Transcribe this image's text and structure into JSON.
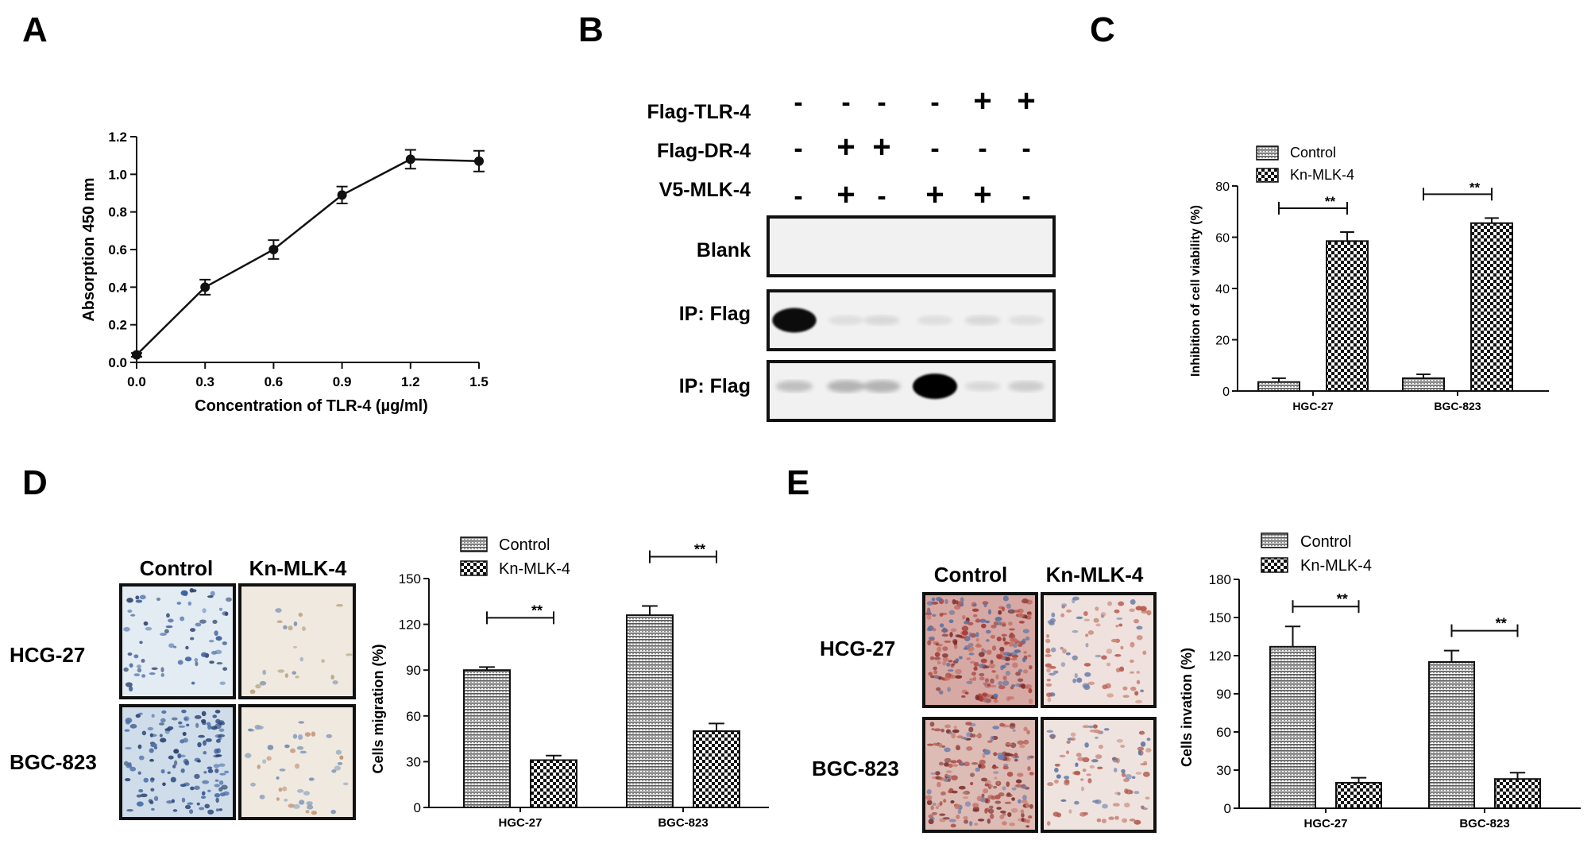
{
  "panels": {
    "A": "A",
    "B": "B",
    "C": "C",
    "D": "D",
    "E": "E"
  },
  "colors": {
    "line": "#111111",
    "control_fill": "hatch-gray",
    "kn_fill": "checker-black-white",
    "blot_background": "#f0f0f0",
    "micro_blue_bg": "#dfe8f2",
    "micro_cream_bg": "#efe8dc",
    "micro_red_dense_bg": "#d9a9a4",
    "micro_light_red_bg": "#efe1df"
  },
  "chart_data": [
    {
      "id": "A",
      "type": "line",
      "title": "",
      "xlabel": "Concentration of TLR-4 (µg/ml)",
      "ylabel": "Absorption 450 nm",
      "xlim": [
        0,
        1.5
      ],
      "ylim": [
        0,
        1.2
      ],
      "x_ticks": [
        "0.0",
        "0.3",
        "0.6",
        "0.9",
        "1.2",
        "1.5"
      ],
      "y_ticks": [
        "0.0",
        "0.2",
        "0.4",
        "0.6",
        "0.8",
        "1.0",
        "1.2"
      ],
      "series": [
        {
          "x": [
            0,
            0.3,
            0.6,
            0.9,
            1.2,
            1.5
          ],
          "values": [
            0.04,
            0.4,
            0.6,
            0.89,
            1.08,
            1.07
          ],
          "errors": [
            0.01,
            0.04,
            0.05,
            0.045,
            0.05,
            0.055
          ]
        }
      ]
    },
    {
      "id": "C",
      "type": "bar",
      "title": "",
      "xlabel": "",
      "ylabel": "Inhibition of cell viability (%)",
      "ylim": [
        0,
        80
      ],
      "y_ticks": [
        "0",
        "20",
        "40",
        "60",
        "80"
      ],
      "categories": [
        "HGC-27",
        "BGC-823"
      ],
      "series": [
        {
          "name": "Control",
          "values": [
            3.5,
            5
          ],
          "errors": [
            1.5,
            1.5
          ]
        },
        {
          "name": "Kn-MLK-4",
          "values": [
            58.5,
            65.5
          ],
          "errors": [
            3.5,
            2
          ]
        }
      ],
      "significance": [
        "**",
        "**"
      ],
      "legend": "top-left"
    },
    {
      "id": "D",
      "type": "bar",
      "title": "",
      "xlabel": "",
      "ylabel": "Cells migration (%)",
      "ylim": [
        0,
        150
      ],
      "y_ticks": [
        "0",
        "30",
        "60",
        "90",
        "120",
        "150"
      ],
      "categories": [
        "HGC-27",
        "BGC-823"
      ],
      "series": [
        {
          "name": "Control",
          "values": [
            90,
            126
          ],
          "errors": [
            2,
            6
          ]
        },
        {
          "name": "Kn-MLK-4",
          "values": [
            31,
            50
          ],
          "errors": [
            3,
            5
          ]
        }
      ],
      "significance": [
        "**",
        "**"
      ],
      "legend": "top-left"
    },
    {
      "id": "E",
      "type": "bar",
      "title": "",
      "xlabel": "",
      "ylabel": "Cells invation (%)",
      "ylim": [
        0,
        180
      ],
      "y_ticks": [
        "0",
        "30",
        "60",
        "90",
        "120",
        "150",
        "180"
      ],
      "categories": [
        "HGC-27",
        "BGC-823"
      ],
      "series": [
        {
          "name": "Control",
          "values": [
            127,
            115
          ],
          "errors": [
            16,
            9
          ]
        },
        {
          "name": "Kn-MLK-4",
          "values": [
            20,
            23
          ],
          "errors": [
            4,
            5
          ]
        }
      ],
      "significance": [
        "**",
        "**"
      ],
      "legend": "top-left"
    }
  ],
  "blot": {
    "rows": [
      {
        "label": "Flag-TLR-4",
        "signs": [
          "-",
          "-",
          "-",
          "-",
          "+",
          "+"
        ]
      },
      {
        "label": "Flag-DR-4",
        "signs": [
          "-",
          "+",
          "+",
          "-",
          "-",
          "-"
        ]
      },
      {
        "label": "V5-MLK-4",
        "signs": [
          "-",
          "+",
          "-",
          "+",
          "+",
          "-"
        ]
      }
    ],
    "panels": [
      {
        "label": "Blank",
        "intensities": [
          0,
          0,
          0,
          0,
          0,
          0
        ]
      },
      {
        "label": "IP: Flag",
        "intensities": [
          0.95,
          0.08,
          0.1,
          0.08,
          0.1,
          0.08
        ]
      },
      {
        "label": "IP: Flag",
        "intensities": [
          0.2,
          0.25,
          0.25,
          1.0,
          0.1,
          0.15
        ]
      }
    ]
  },
  "micrographs_D": {
    "column_headers": [
      "Control",
      "Kn-MLK-4"
    ],
    "row_labels": [
      "HCG-27",
      "BGC-823"
    ]
  },
  "micrographs_E": {
    "column_headers": [
      "Control",
      "Kn-MLK-4"
    ],
    "row_labels": [
      "HCG-27",
      "BGC-823"
    ]
  }
}
